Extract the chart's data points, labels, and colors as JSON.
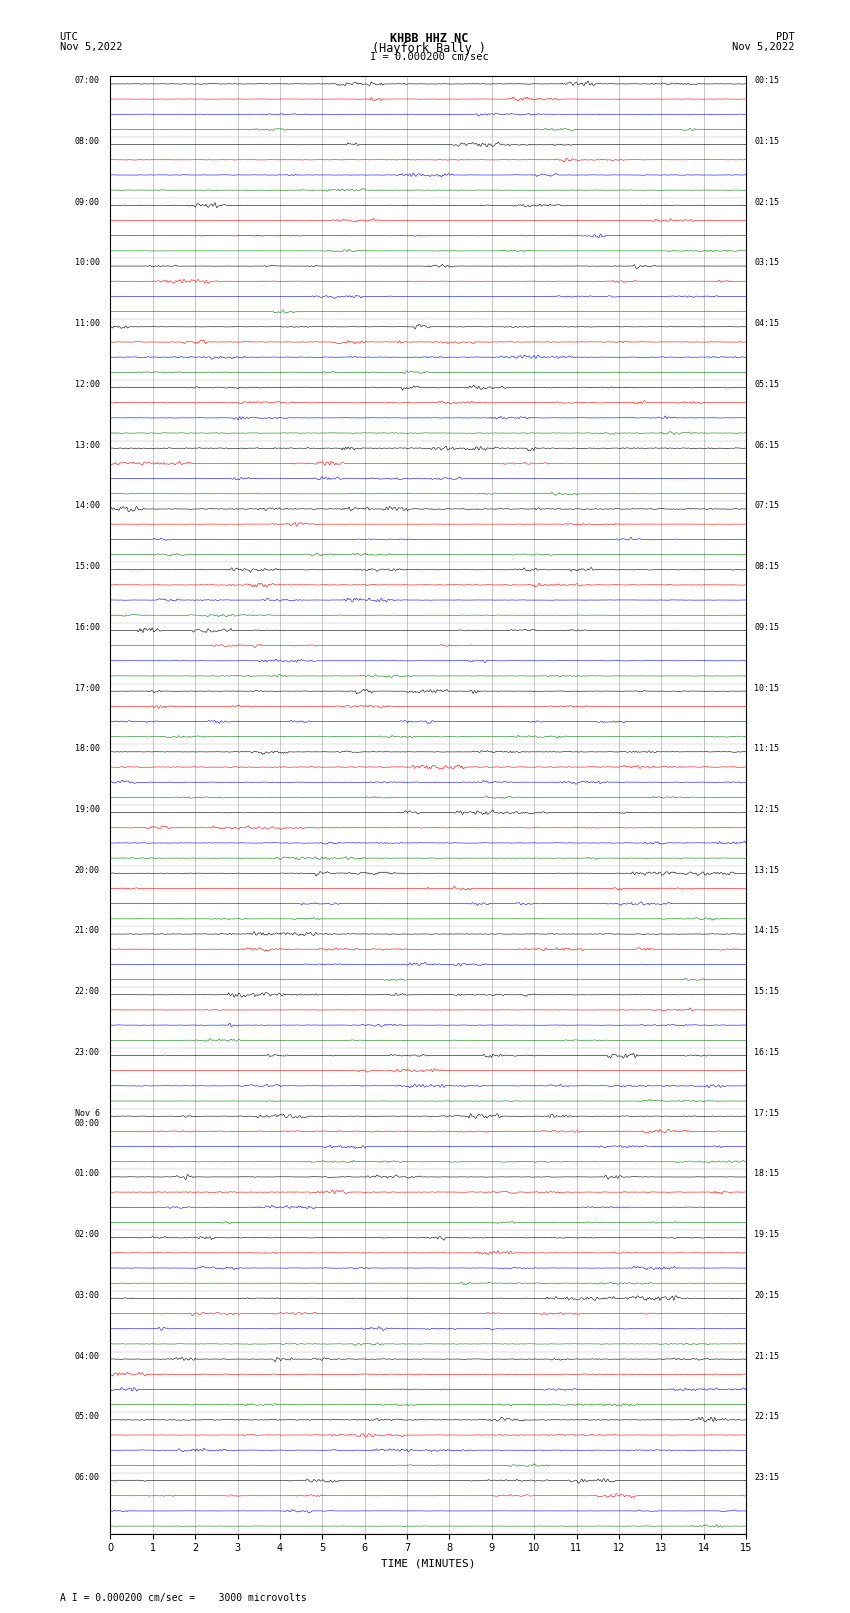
{
  "title_line1": "KHBB HHZ NC",
  "title_line2": "(Hayfork Bally )",
  "scale_label": "I = 0.000200 cm/sec",
  "utc_label": "UTC",
  "date_left": "Nov 5,2022",
  "date_right": "Nov 5,2022",
  "pdt_label": "PDT",
  "bottom_label": "A I = 0.000200 cm/sec =    3000 microvolts",
  "xlabel": "TIME (MINUTES)",
  "bg_color": "#ffffff",
  "trace_colors": [
    "black",
    "red",
    "blue",
    "green"
  ],
  "n_traces_per_hour": 4,
  "minutes_per_row": 15,
  "n_hours": 24,
  "noise_amplitude": 0.38,
  "noise_amplitude_red": 0.3,
  "noise_amplitude_blue": 0.28,
  "noise_amplitude_green": 0.22,
  "fig_width": 8.5,
  "fig_height": 16.13,
  "left_time_labels": [
    "07:00",
    "08:00",
    "09:00",
    "10:00",
    "11:00",
    "12:00",
    "13:00",
    "14:00",
    "15:00",
    "16:00",
    "17:00",
    "18:00",
    "19:00",
    "20:00",
    "21:00",
    "22:00",
    "23:00",
    "Nov 6\n00:00",
    "01:00",
    "02:00",
    "03:00",
    "04:00",
    "05:00",
    "06:00"
  ],
  "right_time_labels": [
    "00:15",
    "01:15",
    "02:15",
    "03:15",
    "04:15",
    "05:15",
    "06:15",
    "07:15",
    "08:15",
    "09:15",
    "10:15",
    "11:15",
    "12:15",
    "13:15",
    "14:15",
    "15:15",
    "16:15",
    "17:15",
    "18:15",
    "19:15",
    "20:15",
    "21:15",
    "22:15",
    "23:15"
  ]
}
